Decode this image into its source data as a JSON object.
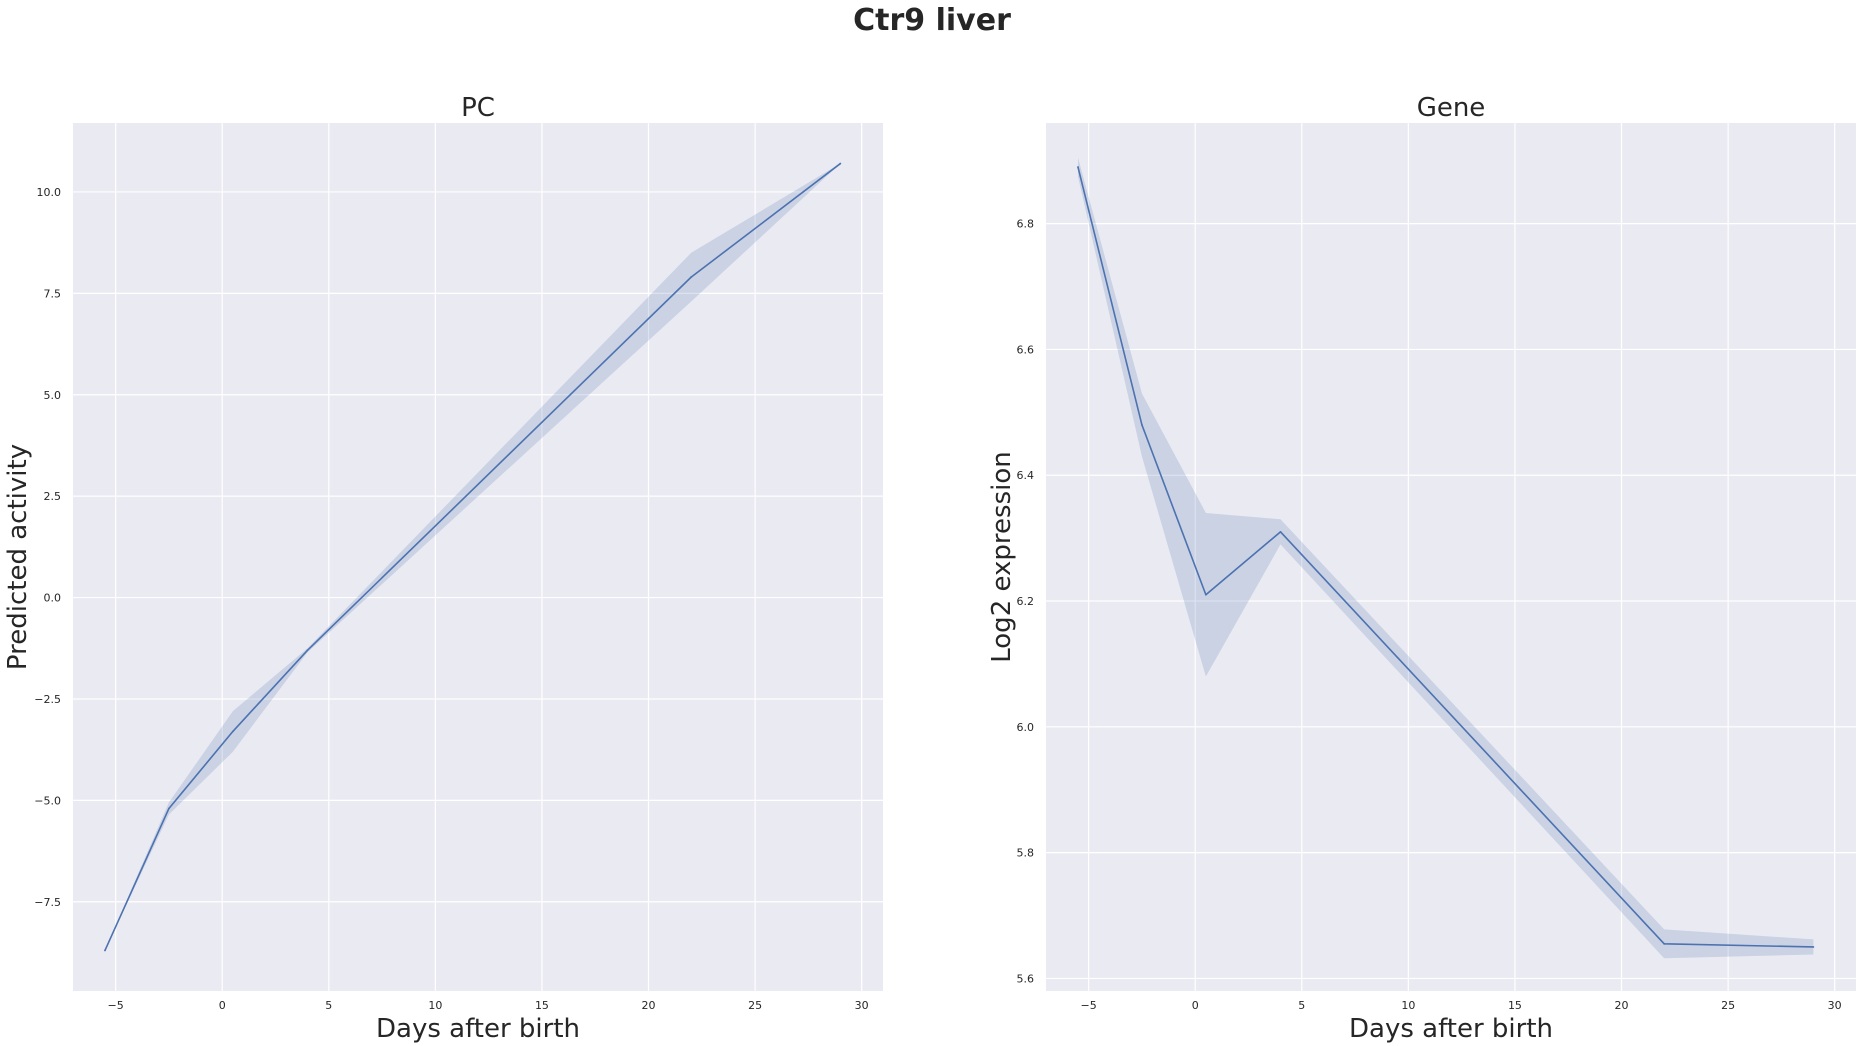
{
  "figure": {
    "title": "Ctr9 liver"
  },
  "chart_data": [
    {
      "type": "line",
      "title": "PC",
      "xlabel": "Days after birth",
      "ylabel": "Predicted activity",
      "xlim": [
        -7,
        31
      ],
      "ylim": [
        -9.7,
        11.7
      ],
      "xticks": [
        -5,
        0,
        5,
        10,
        15,
        20,
        25,
        30
      ],
      "xtick_labels": [
        "−5",
        "0",
        "5",
        "10",
        "15",
        "20",
        "25",
        "30"
      ],
      "yticks": [
        -7.5,
        -5.0,
        -2.5,
        0.0,
        2.5,
        5.0,
        7.5,
        10.0
      ],
      "ytick_labels": [
        "−7.5",
        "−5.0",
        "−2.5",
        "0.0",
        "2.5",
        "5.0",
        "7.5",
        "10.0"
      ],
      "grid": true,
      "series": [
        {
          "color": "#4c72b0",
          "x": [
            -5.5,
            -2.5,
            0.5,
            4,
            22,
            29
          ],
          "y": [
            -8.7,
            -5.2,
            -3.3,
            -1.3,
            7.9,
            10.7
          ],
          "ci_low": [
            -8.7,
            -5.35,
            -3.8,
            -1.35,
            7.3,
            10.7
          ],
          "ci_high": [
            -8.7,
            -5.05,
            -2.8,
            -1.25,
            8.5,
            10.7
          ]
        }
      ]
    },
    {
      "type": "line",
      "title": "Gene",
      "xlabel": "Days after birth",
      "ylabel": "Log2 expression",
      "xlim": [
        -7,
        31
      ],
      "ylim": [
        5.58,
        6.96
      ],
      "xticks": [
        -5,
        0,
        5,
        10,
        15,
        20,
        25,
        30
      ],
      "xtick_labels": [
        "−5",
        "0",
        "5",
        "10",
        "15",
        "20",
        "25",
        "30"
      ],
      "yticks": [
        5.6,
        5.8,
        6.0,
        6.2,
        6.4,
        6.6,
        6.8
      ],
      "ytick_labels": [
        "5.6",
        "5.8",
        "6.0",
        "6.2",
        "6.4",
        "6.6",
        "6.8"
      ],
      "grid": true,
      "series": [
        {
          "color": "#4c72b0",
          "x": [
            -5.5,
            -2.5,
            0.5,
            4,
            22,
            29
          ],
          "y": [
            6.89,
            6.48,
            6.21,
            6.31,
            5.655,
            5.65
          ],
          "ci_low": [
            6.875,
            6.43,
            6.08,
            6.29,
            5.632,
            5.638
          ],
          "ci_high": [
            6.905,
            6.53,
            6.34,
            6.33,
            5.678,
            5.662
          ]
        }
      ]
    }
  ]
}
